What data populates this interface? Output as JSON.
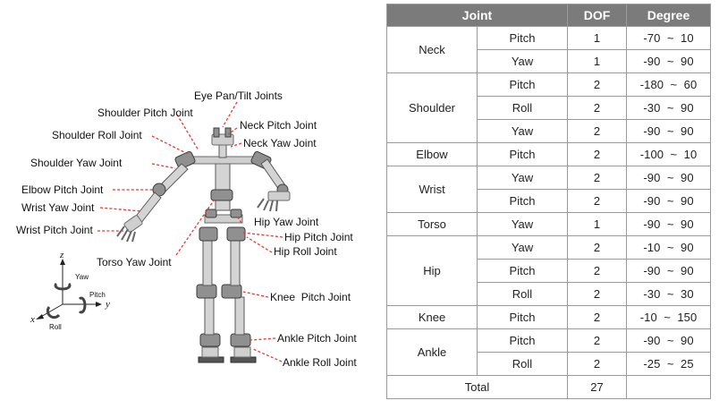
{
  "figure": {
    "joint_labels": [
      "Eye Pan/Tilt Joints",
      "Shoulder Pitch Joint",
      "Neck Pitch Joint",
      "Shoulder Roll Joint",
      "Neck Yaw Joint",
      "Shoulder Yaw Joint",
      "Elbow Pitch Joint",
      "Wrist Yaw Joint",
      "Wrist Pitch Joint",
      "Hip Yaw Joint",
      "Hip Pitch Joint",
      "Hip Roll Joint",
      "Torso Yaw Joint",
      "Knee  Pitch Joint",
      "Ankle Pitch Joint",
      "Ankle Roll Joint"
    ],
    "axes": {
      "z": "z",
      "x": "x",
      "y": "y",
      "yaw": "Yaw",
      "pitch": "Pitch",
      "roll": "Roll"
    },
    "colors": {
      "leader": "#e53935",
      "header_bg": "#7b7b7b"
    }
  },
  "table": {
    "headers": {
      "joint": "Joint",
      "dof": "DOF",
      "degree": "Degree"
    },
    "groups": [
      {
        "joint": "Neck",
        "rows": [
          {
            "axis": "Pitch",
            "dof": "1",
            "degree": "-70  ~  10"
          },
          {
            "axis": "Yaw",
            "dof": "1",
            "degree": "-90  ~  90"
          }
        ]
      },
      {
        "joint": "Shoulder",
        "rows": [
          {
            "axis": "Pitch",
            "dof": "2",
            "degree": "-180  ~  60"
          },
          {
            "axis": "Roll",
            "dof": "2",
            "degree": "-30  ~  90"
          },
          {
            "axis": "Yaw",
            "dof": "2",
            "degree": "-90  ~  90"
          }
        ]
      },
      {
        "joint": "Elbow",
        "rows": [
          {
            "axis": "Pitch",
            "dof": "2",
            "degree": "-100  ~  10"
          }
        ]
      },
      {
        "joint": "Wrist",
        "rows": [
          {
            "axis": "Yaw",
            "dof": "2",
            "degree": "-90  ~  90"
          },
          {
            "axis": "Pitch",
            "dof": "2",
            "degree": "-90  ~  90"
          }
        ]
      },
      {
        "joint": "Torso",
        "rows": [
          {
            "axis": "Yaw",
            "dof": "1",
            "degree": "-90  ~  90"
          }
        ]
      },
      {
        "joint": "Hip",
        "rows": [
          {
            "axis": "Yaw",
            "dof": "2",
            "degree": "-10  ~  90"
          },
          {
            "axis": "Pitch",
            "dof": "2",
            "degree": "-90  ~  90"
          },
          {
            "axis": "Roll",
            "dof": "2",
            "degree": "-30  ~  30"
          }
        ]
      },
      {
        "joint": "Knee",
        "rows": [
          {
            "axis": "Pitch",
            "dof": "2",
            "degree": "-10  ~  150"
          }
        ]
      },
      {
        "joint": "Ankle",
        "rows": [
          {
            "axis": "Pitch",
            "dof": "2",
            "degree": "-90  ~  90"
          },
          {
            "axis": "Roll",
            "dof": "2",
            "degree": "-25  ~  25"
          }
        ]
      }
    ],
    "total": {
      "label": "Total",
      "dof": "27",
      "degree": ""
    }
  }
}
